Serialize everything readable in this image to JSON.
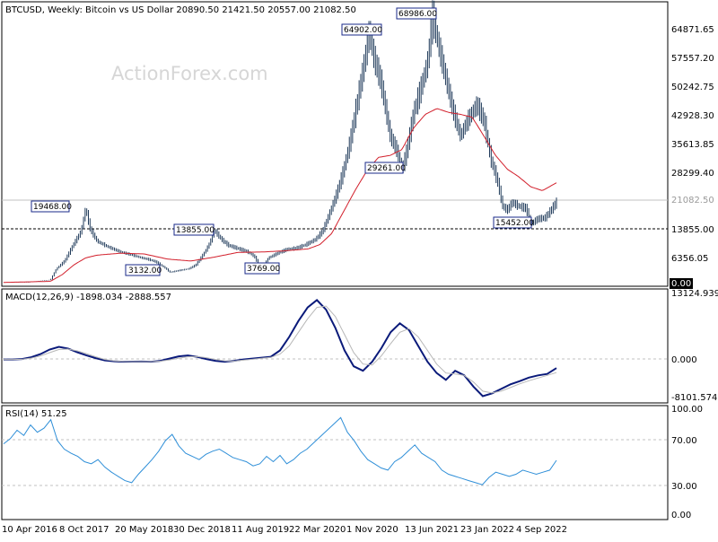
{
  "header": {
    "main": "BTCUSD, Weekly:  Bitcoin vs US Dollar  20890.50 21421.50 20557.00 21082.50",
    "macd": "MACD(12,26,9) -1898.034 -2888.557",
    "rsi": "RSI(14) 51.25"
  },
  "watermark": "ActionForex.com",
  "colors": {
    "price_bars": "#1f3a5a",
    "ma": "#d21f2b",
    "macd": "#0a1a7a",
    "macd_signal": "#b7b7b7",
    "rsi": "#2f8fd8",
    "annotation_border": "#1a2a8a"
  },
  "chart_data": [
    {
      "type": "ohlc",
      "title": "BTCUSD, Weekly:  Bitcoin vs US Dollar  20890.50 21421.50 20557.00 21082.50",
      "ylim": [
        0,
        70000
      ],
      "y_ticks": [
        "64871.65",
        "57557.20",
        "50242.75",
        "42928.30",
        "35613.85",
        "28299.40",
        "13855.00",
        "6356.05",
        "0.00"
      ],
      "last_price": "21082.50",
      "support_level": "13855.00",
      "x_tick_labels": [
        "10 Apr 2016",
        "8 Oct 2017",
        "20 May 2018",
        "30 Dec 2018",
        "11 Aug 2019",
        "22 Mar 2020",
        "1 Nov 2020",
        "13 Jun 2021",
        "23 Jan 2022",
        "4 Sep 2022"
      ],
      "annotations": [
        "19468.00",
        "3132.00",
        "13855.00",
        "3769.00",
        "64902.00",
        "68986.00",
        "29261.00",
        "15452.00"
      ],
      "price_path_anchors": [
        [
          0,
          520
        ],
        [
          20,
          520
        ],
        [
          40,
          1200
        ],
        [
          45,
          4000
        ],
        [
          52,
          6000
        ],
        [
          60,
          10500
        ],
        [
          66,
          13500
        ],
        [
          70,
          19468
        ],
        [
          74,
          14000
        ],
        [
          80,
          11000
        ],
        [
          90,
          9500
        ],
        [
          100,
          8300
        ],
        [
          110,
          7500
        ],
        [
          118,
          6800
        ],
        [
          124,
          6400
        ],
        [
          130,
          5800
        ],
        [
          138,
          4200
        ],
        [
          142,
          3132
        ],
        [
          150,
          3600
        ],
        [
          158,
          4000
        ],
        [
          164,
          5000
        ],
        [
          170,
          7500
        ],
        [
          175,
          10000
        ],
        [
          180,
          13855
        ],
        [
          186,
          11500
        ],
        [
          192,
          10000
        ],
        [
          200,
          9200
        ],
        [
          208,
          8400
        ],
        [
          214,
          7200
        ],
        [
          220,
          3769
        ],
        [
          226,
          6800
        ],
        [
          234,
          8000
        ],
        [
          242,
          9000
        ],
        [
          250,
          9300
        ],
        [
          258,
          10200
        ],
        [
          266,
          11500
        ],
        [
          272,
          13500
        ],
        [
          278,
          18000
        ],
        [
          284,
          23000
        ],
        [
          290,
          29000
        ],
        [
          296,
          37000
        ],
        [
          302,
          47000
        ],
        [
          308,
          57000
        ],
        [
          312,
          64902
        ],
        [
          316,
          58000
        ],
        [
          322,
          52000
        ],
        [
          330,
          38000
        ],
        [
          336,
          34000
        ],
        [
          340,
          29261
        ],
        [
          344,
          34000
        ],
        [
          350,
          44000
        ],
        [
          356,
          50000
        ],
        [
          362,
          57000
        ],
        [
          366,
          68986
        ],
        [
          372,
          60000
        ],
        [
          378,
          52000
        ],
        [
          384,
          44000
        ],
        [
          390,
          38000
        ],
        [
          396,
          42000
        ],
        [
          404,
          46000
        ],
        [
          410,
          42000
        ],
        [
          416,
          32000
        ],
        [
          422,
          26000
        ],
        [
          426,
          20000
        ],
        [
          430,
          19000
        ],
        [
          434,
          21000
        ],
        [
          440,
          20000
        ],
        [
          446,
          19500
        ],
        [
          450,
          15452
        ],
        [
          456,
          16800
        ],
        [
          462,
          17000
        ],
        [
          466,
          18500
        ],
        [
          472,
          21082.5
        ]
      ],
      "ma_anchors": [
        [
          0,
          520
        ],
        [
          40,
          800
        ],
        [
          50,
          2500
        ],
        [
          60,
          5000
        ],
        [
          70,
          6800
        ],
        [
          80,
          7500
        ],
        [
          100,
          8000
        ],
        [
          120,
          7800
        ],
        [
          140,
          6500
        ],
        [
          160,
          6000
        ],
        [
          180,
          7000
        ],
        [
          200,
          8200
        ],
        [
          220,
          8300
        ],
        [
          240,
          8600
        ],
        [
          260,
          9100
        ],
        [
          270,
          10200
        ],
        [
          280,
          13000
        ],
        [
          290,
          18500
        ],
        [
          300,
          24000
        ],
        [
          310,
          29000
        ],
        [
          320,
          32500
        ],
        [
          330,
          33000
        ],
        [
          340,
          34500
        ],
        [
          350,
          40000
        ],
        [
          360,
          43500
        ],
        [
          370,
          45000
        ],
        [
          380,
          44000
        ],
        [
          390,
          43500
        ],
        [
          400,
          42800
        ],
        [
          410,
          38000
        ],
        [
          420,
          33000
        ],
        [
          430,
          29500
        ],
        [
          440,
          27500
        ],
        [
          450,
          25000
        ],
        [
          460,
          24000
        ],
        [
          472,
          26000
        ]
      ]
    },
    {
      "type": "line",
      "title": "MACD(12,26,9) -1898.034 -2888.557",
      "ylim": [
        -9000,
        14000
      ],
      "y_ticks": [
        "13124.939",
        "0.000",
        "-8101.574"
      ],
      "series": [
        {
          "values": [
            0,
            0,
            100,
            500,
            1200,
            2200,
            2800,
            2400,
            1600,
            900,
            300,
            -200,
            -400,
            -500,
            -480,
            -450,
            -500,
            -300,
            200,
            700,
            900,
            600,
            100,
            -300,
            -500,
            -300,
            0,
            200,
            400,
            600,
            2000,
            5000,
            8500,
            11500,
            13124,
            11000,
            7000,
            2000,
            -1500,
            -2500,
            -500,
            2500,
            6000,
            8000,
            6500,
            3000,
            -500,
            -3000,
            -4500,
            -2500,
            -3500,
            -6000,
            -8101,
            -7500,
            -6500,
            -5500,
            -4800,
            -4000,
            -3500,
            -3200,
            -1898
          ]
        },
        {
          "values": [
            0,
            0,
            50,
            300,
            800,
            1500,
            2200,
            2300,
            1900,
            1300,
            600,
            0,
            -300,
            -450,
            -480,
            -470,
            -480,
            -380,
            -100,
            300,
            600,
            650,
            400,
            0,
            -300,
            -350,
            -150,
            50,
            250,
            450,
            1200,
            3000,
            6000,
            9000,
            11500,
            11800,
            9500,
            5500,
            1500,
            -1000,
            -1200,
            800,
            3500,
            6000,
            6800,
            5000,
            2000,
            -1000,
            -3000,
            -3200,
            -3500,
            -5000,
            -7000,
            -7400,
            -7000,
            -6200,
            -5400,
            -4700,
            -4100,
            -3500,
            -2888.557
          ]
        }
      ]
    },
    {
      "type": "line",
      "title": "RSI(14) 51.25",
      "ylim": [
        0,
        100
      ],
      "y_ticks": [
        "100.00",
        "70.00",
        "30.00",
        "0.00"
      ],
      "series": [
        {
          "values": [
            67,
            72,
            80,
            75,
            85,
            78,
            82,
            90,
            70,
            62,
            58,
            55,
            50,
            48,
            52,
            45,
            40,
            36,
            32,
            30,
            38,
            45,
            52,
            60,
            70,
            76,
            65,
            58,
            55,
            52,
            57,
            60,
            62,
            58,
            54,
            52,
            50,
            46,
            48,
            55,
            50,
            56,
            48,
            52,
            58,
            62,
            68,
            74,
            80,
            86,
            92,
            78,
            70,
            60,
            52,
            48,
            44,
            42,
            50,
            54,
            60,
            66,
            58,
            54,
            50,
            42,
            38,
            36,
            34,
            32,
            30,
            28,
            35,
            40,
            38,
            36,
            38,
            42,
            40,
            38,
            40,
            42,
            51.25
          ]
        }
      ]
    }
  ]
}
